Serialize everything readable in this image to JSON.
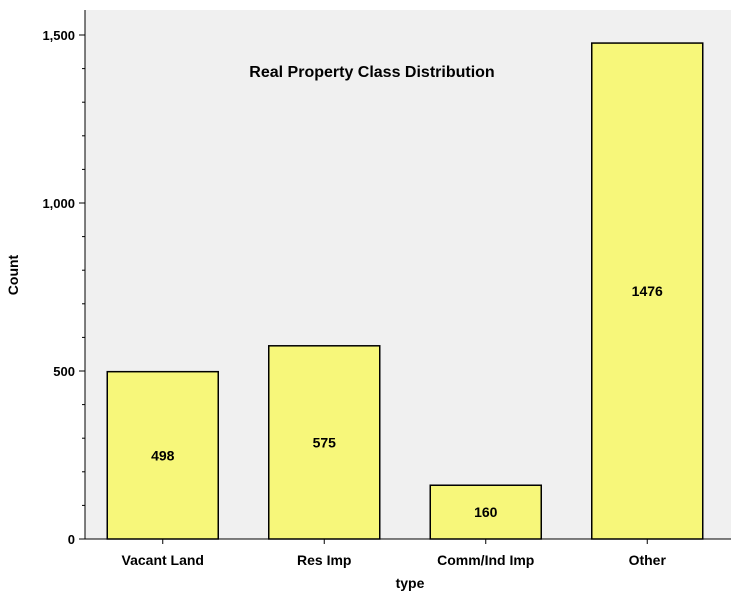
{
  "chart_data": {
    "type": "bar",
    "title": "Real Property Class Distribution",
    "xlabel": "type",
    "ylabel": "Count",
    "categories": [
      "Vacant Land",
      "Res Imp",
      "Comm/Ind Imp",
      "Other"
    ],
    "values": [
      498,
      575,
      160,
      1476
    ],
    "data_labels": [
      "498",
      "575",
      "160",
      "1476"
    ],
    "ylim": [
      0,
      1500
    ],
    "yticks": [
      0,
      500,
      1000,
      1500
    ],
    "ytick_labels": [
      "0",
      "500",
      "1,000",
      "1,500"
    ],
    "grid": false,
    "legend": "none",
    "colors": {
      "bar_fill": "#f7f77a",
      "bar_stroke": "#000000",
      "plot_background": "#f0f0f0",
      "page_background": "#ffffff"
    }
  }
}
